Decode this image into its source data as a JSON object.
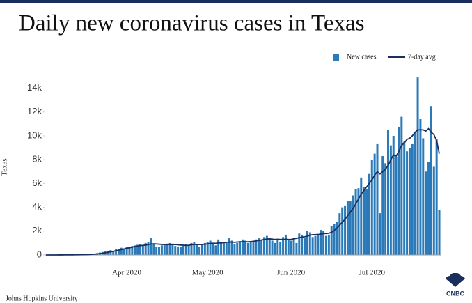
{
  "chart_data": {
    "type": "bar_line",
    "title": "Daily new coronavirus cases in Texas",
    "ylabel": "Texas",
    "source": "Johns Hopkins University",
    "logo": "CNBC",
    "categories": [
      null,
      null,
      null,
      null,
      null,
      null,
      null,
      null,
      null,
      null,
      null,
      null,
      null,
      null,
      null,
      null,
      null,
      null,
      null,
      null,
      null,
      null,
      null,
      null,
      null,
      null,
      null,
      null,
      null,
      null,
      "Apr 2020",
      null,
      null,
      null,
      null,
      null,
      null,
      null,
      null,
      null,
      null,
      null,
      null,
      null,
      null,
      null,
      null,
      null,
      null,
      null,
      null,
      null,
      null,
      null,
      null,
      null,
      null,
      null,
      null,
      null,
      "May 2020",
      null,
      null,
      null,
      null,
      null,
      null,
      null,
      null,
      null,
      null,
      null,
      null,
      null,
      null,
      null,
      null,
      null,
      null,
      null,
      null,
      null,
      null,
      null,
      null,
      null,
      null,
      null,
      null,
      null,
      null,
      "Jun 2020",
      null,
      null,
      null,
      null,
      null,
      null,
      null,
      null,
      null,
      null,
      null,
      null,
      null,
      null,
      null,
      null,
      null,
      null,
      null,
      null,
      null,
      null,
      null,
      null,
      null,
      null,
      null,
      null,
      null,
      "Jul 2020",
      null,
      null,
      null,
      null,
      null,
      null,
      null,
      null,
      null,
      null,
      null,
      null,
      null,
      null,
      null,
      null,
      null,
      null,
      null,
      null,
      null,
      null,
      null,
      null,
      null
    ],
    "series": [
      {
        "name": "New cases",
        "color": "#2a7ab9",
        "values": [
          0,
          0,
          0,
          0,
          2,
          5,
          3,
          5,
          10,
          10,
          15,
          20,
          25,
          30,
          40,
          50,
          60,
          80,
          100,
          150,
          200,
          250,
          300,
          350,
          400,
          350,
          500,
          450,
          600,
          550,
          700,
          650,
          750,
          800,
          850,
          900,
          800,
          1000,
          1100,
          1400,
          900,
          700,
          650,
          800,
          900,
          950,
          1000,
          950,
          750,
          650,
          700,
          800,
          900,
          850,
          1000,
          1050,
          900,
          700,
          850,
          1000,
          1100,
          1200,
          900,
          800,
          1300,
          1000,
          1100,
          1000,
          1400,
          1200,
          900,
          1000,
          1100,
          1300,
          1200,
          1000,
          1100,
          1200,
          1300,
          1400,
          1300,
          1500,
          1600,
          1400,
          1200,
          1000,
          1300,
          1100,
          1500,
          1700,
          1300,
          1200,
          1400,
          1000,
          1800,
          1700,
          1400,
          2000,
          1900,
          1500,
          1600,
          1700,
          2100,
          2000,
          1600,
          1700,
          2400,
          2600,
          2800,
          3500,
          4000,
          4100,
          4500,
          4500,
          5000,
          5500,
          5600,
          6500,
          5700,
          5500,
          6800,
          8000,
          8500,
          9300,
          3500,
          8300,
          7700,
          10500,
          9200,
          10000,
          8200,
          10700,
          11600,
          9500,
          8700,
          9000,
          9300,
          10300,
          14900,
          11400,
          9800,
          7000,
          7800,
          12500,
          7400,
          9700,
          3800
        ]
      },
      {
        "name": "7-day avg",
        "color": "#1b2f5e",
        "values": [
          0,
          0,
          0,
          1,
          2,
          3,
          4,
          5,
          7,
          9,
          12,
          15,
          18,
          22,
          27,
          33,
          40,
          50,
          65,
          85,
          110,
          140,
          180,
          220,
          260,
          300,
          350,
          400,
          450,
          500,
          560,
          600,
          650,
          700,
          740,
          780,
          800,
          830,
          860,
          920,
          930,
          920,
          900,
          880,
          870,
          870,
          870,
          880,
          870,
          850,
          830,
          820,
          800,
          810,
          850,
          880,
          880,
          870,
          880,
          900,
          930,
          960,
          980,
          970,
          1000,
          1010,
          1030,
          1050,
          1080,
          1070,
          1060,
          1080,
          1100,
          1110,
          1100,
          1100,
          1120,
          1140,
          1180,
          1220,
          1250,
          1300,
          1330,
          1350,
          1330,
          1300,
          1320,
          1300,
          1300,
          1320,
          1300,
          1300,
          1350,
          1400,
          1450,
          1500,
          1530,
          1580,
          1650,
          1700,
          1700,
          1720,
          1750,
          1800,
          1800,
          1820,
          1900,
          2050,
          2250,
          2500,
          2750,
          3000,
          3300,
          3600,
          3900,
          4300,
          4700,
          5100,
          5400,
          5700,
          6000,
          6300,
          6700,
          7000,
          6800,
          7000,
          7200,
          7500,
          8000,
          8400,
          8300,
          8700,
          9200,
          9400,
          9700,
          9800,
          10000,
          10300,
          10500,
          10500,
          10500,
          10400,
          10600,
          10300,
          10100,
          9600,
          8500
        ]
      }
    ],
    "ylim": [
      0,
      14500
    ],
    "yticks": [
      0,
      {
        "value": 2000,
        "label": "2k"
      },
      {
        "value": 4000,
        "label": "4k"
      },
      {
        "value": 6000,
        "label": "6k"
      },
      {
        "value": 8000,
        "label": "8k"
      },
      {
        "value": 10000,
        "label": "10k"
      },
      {
        "value": 12000,
        "label": "12k"
      },
      {
        "value": 14000,
        "label": "14k"
      }
    ],
    "legend": "top-right"
  }
}
